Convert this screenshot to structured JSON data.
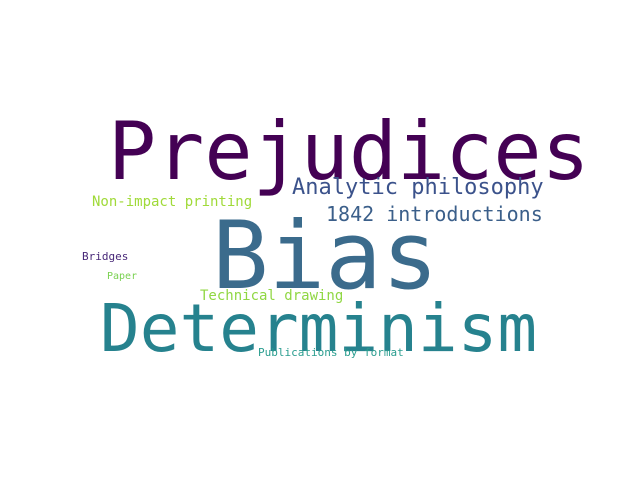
{
  "words": {
    "prejudices": {
      "text": "Prejudices",
      "color": "#440154"
    },
    "analytic": {
      "text": "Analytic philosophy",
      "color": "#3b528b"
    },
    "nonimpact": {
      "text": "Non-impact printing",
      "color": "#a0da39"
    },
    "intro1842": {
      "text": "1842 introductions",
      "color": "#3b5f8a"
    },
    "bias": {
      "text": "Bias",
      "color": "#3b6b8c"
    },
    "bridges": {
      "text": "Bridges",
      "color": "#482878"
    },
    "paper": {
      "text": "Paper",
      "color": "#7ad151"
    },
    "technical": {
      "text": "Technical drawing",
      "color": "#90d743"
    },
    "determinism": {
      "text": "Determinism",
      "color": "#26828e"
    },
    "publications": {
      "text": "Publications by format",
      "color": "#2a9d8f"
    }
  }
}
